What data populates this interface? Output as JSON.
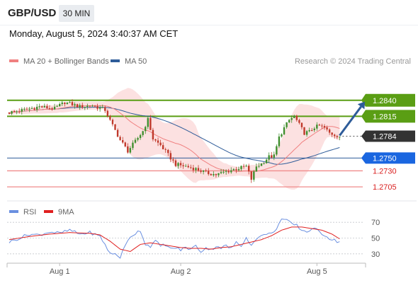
{
  "header": {
    "symbol": "GBP/USD",
    "timeframe": "30 MIN",
    "datetime": "Monday, August 5, 2024 3:40:37 AM CET"
  },
  "colors": {
    "resistance": "#5a9e14",
    "support": "#f08b8b",
    "ma50": "#2e5c99",
    "ma20": "#f08080",
    "bollinger_fill": "#fbd7d7",
    "arrow": "#2e5c99",
    "last_price_tag": "#333333",
    "rsi": "#6a8fe0",
    "rsi_ma": "#e02020",
    "candle_up": "#3f8f2e",
    "candle_down": "#c0392b"
  },
  "chart_data": [
    {
      "type": "candlestick",
      "legend": [
        {
          "label": "MA 20 + Bollinger Bands",
          "color": "#f08080"
        },
        {
          "label": "MA 50",
          "color": "#2e5c99"
        }
      ],
      "credit": "Research © 2024 Trading Central",
      "x_tick_labels": [
        "Aug 1",
        "Aug 2",
        "Aug 5"
      ],
      "x_tick_positions": [
        20,
        68,
        122
      ],
      "n_bars": 132,
      "ylim": [
        1.2693,
        1.2864
      ],
      "levels": [
        {
          "value": 1.284,
          "label": "1.2840",
          "kind": "resistance"
        },
        {
          "value": 1.2815,
          "label": "1.2815",
          "kind": "resistance"
        },
        {
          "value": 1.2784,
          "label": "1.2784",
          "kind": "last_price"
        },
        {
          "value": 1.275,
          "label": "1.2750",
          "kind": "pivot"
        },
        {
          "value": 1.273,
          "label": "1.2730",
          "kind": "support"
        },
        {
          "value": 1.2705,
          "label": "1.2705",
          "kind": "support"
        }
      ],
      "projection": {
        "from_bar": 131,
        "from_value": 1.2785,
        "to_bar": 141,
        "to_value": 1.2838
      },
      "close_anchors": [
        [
          0,
          1.2821
        ],
        [
          6,
          1.2825
        ],
        [
          12,
          1.283
        ],
        [
          18,
          1.2827
        ],
        [
          22,
          1.2837
        ],
        [
          28,
          1.283
        ],
        [
          33,
          1.2832
        ],
        [
          38,
          1.2825
        ],
        [
          40,
          1.2808
        ],
        [
          44,
          1.2778
        ],
        [
          47,
          1.2761
        ],
        [
          50,
          1.2776
        ],
        [
          53,
          1.2792
        ],
        [
          55,
          1.281
        ],
        [
          57,
          1.278
        ],
        [
          60,
          1.277
        ],
        [
          63,
          1.2755
        ],
        [
          66,
          1.274
        ],
        [
          70,
          1.2737
        ],
        [
          74,
          1.2733
        ],
        [
          78,
          1.2727
        ],
        [
          82,
          1.2724
        ],
        [
          86,
          1.2729
        ],
        [
          90,
          1.2733
        ],
        [
          94,
          1.2737
        ],
        [
          96,
          1.2717
        ],
        [
          98,
          1.2737
        ],
        [
          100,
          1.2741
        ],
        [
          103,
          1.2752
        ],
        [
          105,
          1.2753
        ],
        [
          107,
          1.2782
        ],
        [
          109,
          1.2797
        ],
        [
          111,
          1.2809
        ],
        [
          113,
          1.2815
        ],
        [
          115,
          1.2802
        ],
        [
          117,
          1.2789
        ],
        [
          119,
          1.2791
        ],
        [
          121,
          1.2798
        ],
        [
          123,
          1.28
        ],
        [
          125,
          1.2797
        ],
        [
          127,
          1.2789
        ],
        [
          129,
          1.2786
        ],
        [
          131,
          1.2784
        ]
      ]
    },
    {
      "type": "line",
      "legend": [
        {
          "label": "RSI",
          "color": "#6a8fe0"
        },
        {
          "label": "9MA",
          "color": "#e02020"
        }
      ],
      "ylim": [
        20,
        80
      ],
      "y_ticks": [
        70,
        50,
        30
      ],
      "rsi_anchors": [
        [
          0,
          45
        ],
        [
          4,
          50
        ],
        [
          8,
          55
        ],
        [
          12,
          54
        ],
        [
          16,
          58
        ],
        [
          20,
          56
        ],
        [
          24,
          60
        ],
        [
          28,
          55
        ],
        [
          32,
          57
        ],
        [
          36,
          52
        ],
        [
          38,
          42
        ],
        [
          40,
          30
        ],
        [
          42,
          30
        ],
        [
          44,
          26
        ],
        [
          46,
          40
        ],
        [
          48,
          52
        ],
        [
          50,
          56
        ],
        [
          52,
          60
        ],
        [
          54,
          42
        ],
        [
          56,
          40
        ],
        [
          58,
          46
        ],
        [
          60,
          40
        ],
        [
          62,
          42
        ],
        [
          64,
          36
        ],
        [
          66,
          38
        ],
        [
          68,
          35
        ],
        [
          70,
          38
        ],
        [
          72,
          36
        ],
        [
          74,
          40
        ],
        [
          76,
          33
        ],
        [
          78,
          38
        ],
        [
          80,
          35
        ],
        [
          82,
          40
        ],
        [
          84,
          38
        ],
        [
          86,
          40
        ],
        [
          88,
          37
        ],
        [
          90,
          44
        ],
        [
          92,
          40
        ],
        [
          94,
          52
        ],
        [
          96,
          40
        ],
        [
          98,
          50
        ],
        [
          100,
          52
        ],
        [
          102,
          56
        ],
        [
          104,
          55
        ],
        [
          106,
          63
        ],
        [
          108,
          74
        ],
        [
          110,
          72
        ],
        [
          112,
          68
        ],
        [
          114,
          66
        ],
        [
          116,
          60
        ],
        [
          118,
          58
        ],
        [
          120,
          62
        ],
        [
          122,
          60
        ],
        [
          124,
          56
        ],
        [
          126,
          52
        ],
        [
          128,
          48
        ],
        [
          130,
          46
        ],
        [
          131,
          45
        ]
      ],
      "rsi_ma_anchors": [
        [
          0,
          48
        ],
        [
          8,
          52
        ],
        [
          16,
          55
        ],
        [
          24,
          57
        ],
        [
          32,
          56
        ],
        [
          36,
          54
        ],
        [
          40,
          46
        ],
        [
          44,
          36
        ],
        [
          48,
          33
        ],
        [
          52,
          42
        ],
        [
          56,
          44
        ],
        [
          60,
          42
        ],
        [
          64,
          40
        ],
        [
          68,
          38
        ],
        [
          72,
          37
        ],
        [
          76,
          37
        ],
        [
          80,
          36
        ],
        [
          84,
          38
        ],
        [
          88,
          39
        ],
        [
          92,
          42
        ],
        [
          96,
          45
        ],
        [
          100,
          48
        ],
        [
          104,
          53
        ],
        [
          108,
          60
        ],
        [
          112,
          64
        ],
        [
          116,
          64
        ],
        [
          120,
          62
        ],
        [
          124,
          60
        ],
        [
          128,
          55
        ],
        [
          131,
          49
        ]
      ]
    }
  ]
}
